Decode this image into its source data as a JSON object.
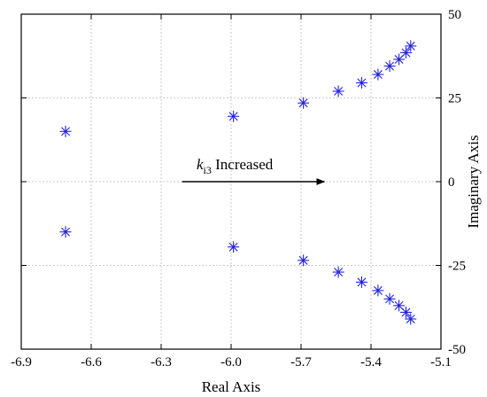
{
  "chart_data": {
    "type": "scatter",
    "title": "",
    "xlabel": "Real Axis",
    "ylabel": "Imaginary Axis",
    "xlim": [
      -6.9,
      -5.1
    ],
    "ylim": [
      -50,
      50
    ],
    "x_ticks": [
      "-6.9",
      "-6.6",
      "-6.3",
      "-6.0",
      "-5.7",
      "-5.4",
      "-5.1"
    ],
    "y_ticks": [
      "50",
      "25",
      "0",
      "-25",
      "-50"
    ],
    "y_tick_side": "right",
    "grid": true,
    "marker": "asterisk",
    "marker_color": "#2222dd",
    "series": [
      {
        "points": [
          [
            -6.71,
            15.0
          ],
          [
            -6.71,
            -15.0
          ],
          [
            -5.99,
            19.5
          ],
          [
            -5.99,
            -19.5
          ],
          [
            -5.69,
            23.5
          ],
          [
            -5.69,
            -23.5
          ],
          [
            -5.54,
            27.0
          ],
          [
            -5.54,
            -27.0
          ],
          [
            -5.44,
            29.5
          ],
          [
            -5.44,
            -30.0
          ],
          [
            -5.37,
            32.0
          ],
          [
            -5.37,
            -32.5
          ],
          [
            -5.32,
            34.5
          ],
          [
            -5.32,
            -35.0
          ],
          [
            -5.28,
            36.5
          ],
          [
            -5.28,
            -37.0
          ],
          [
            -5.25,
            38.5
          ],
          [
            -5.25,
            -39.0
          ],
          [
            -5.23,
            40.5
          ],
          [
            -5.23,
            -41.0
          ]
        ]
      }
    ],
    "annotation": {
      "text_main": "k",
      "text_sub": "i3",
      "text_rest": " Increased",
      "arrow_from": [
        -6.21,
        0
      ],
      "arrow_to": [
        -5.6,
        0
      ]
    }
  }
}
